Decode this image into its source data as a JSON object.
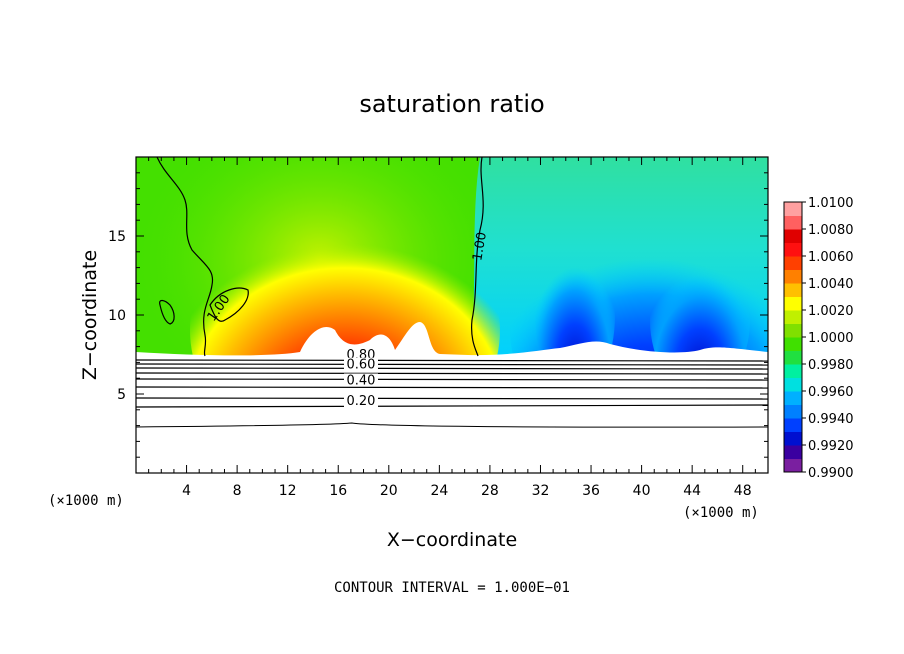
{
  "chart_data": {
    "type": "heatmap",
    "title": "saturation ratio",
    "xlabel": "X−coordinate",
    "ylabel": "Z−coordinate",
    "x_unit_label": "(×1000 m)",
    "z_unit_label": "(×1000 m)",
    "footnote": "CONTOUR INTERVAL = 1.000E−01",
    "xlim": [
      0,
      50
    ],
    "ylim": [
      0,
      20
    ],
    "xticks": [
      4,
      8,
      12,
      16,
      20,
      24,
      28,
      32,
      36,
      40,
      44,
      48
    ],
    "yticks": [
      5,
      10,
      15
    ],
    "grid": false,
    "colorbar": {
      "range": [
        0.99,
        1.01
      ],
      "labels": [
        "1.0100",
        "1.0080",
        "1.0060",
        "1.0040",
        "1.0020",
        "1.0000",
        "0.9980",
        "0.9960",
        "0.9940",
        "0.9920",
        "0.9900"
      ],
      "colors": [
        "#7a1fa0",
        "#3a00a0",
        "#0010d0",
        "#0040ff",
        "#0080ff",
        "#00b0ff",
        "#00e0e0",
        "#00f0a0",
        "#20e040",
        "#40e000",
        "#80e000",
        "#c0f000",
        "#ffff00",
        "#ffc000",
        "#ff8000",
        "#ff4000",
        "#ff1010",
        "#e00000",
        "#ff6060",
        "#ffa0a0"
      ]
    },
    "cloud_base_km": 7.3,
    "contour_labels": [
      {
        "text": "1.00",
        "x": 6.8,
        "z": 10.3
      },
      {
        "text": "1.00",
        "x": 27.5,
        "z": 14.3
      },
      {
        "text": "0.80",
        "x": 17.8,
        "z": 7.2
      },
      {
        "text": "0.60",
        "x": 17.8,
        "z": 6.6
      },
      {
        "text": "0.40",
        "x": 17.8,
        "z": 5.6
      },
      {
        "text": "0.20",
        "x": 17.8,
        "z": 4.3
      }
    ]
  }
}
